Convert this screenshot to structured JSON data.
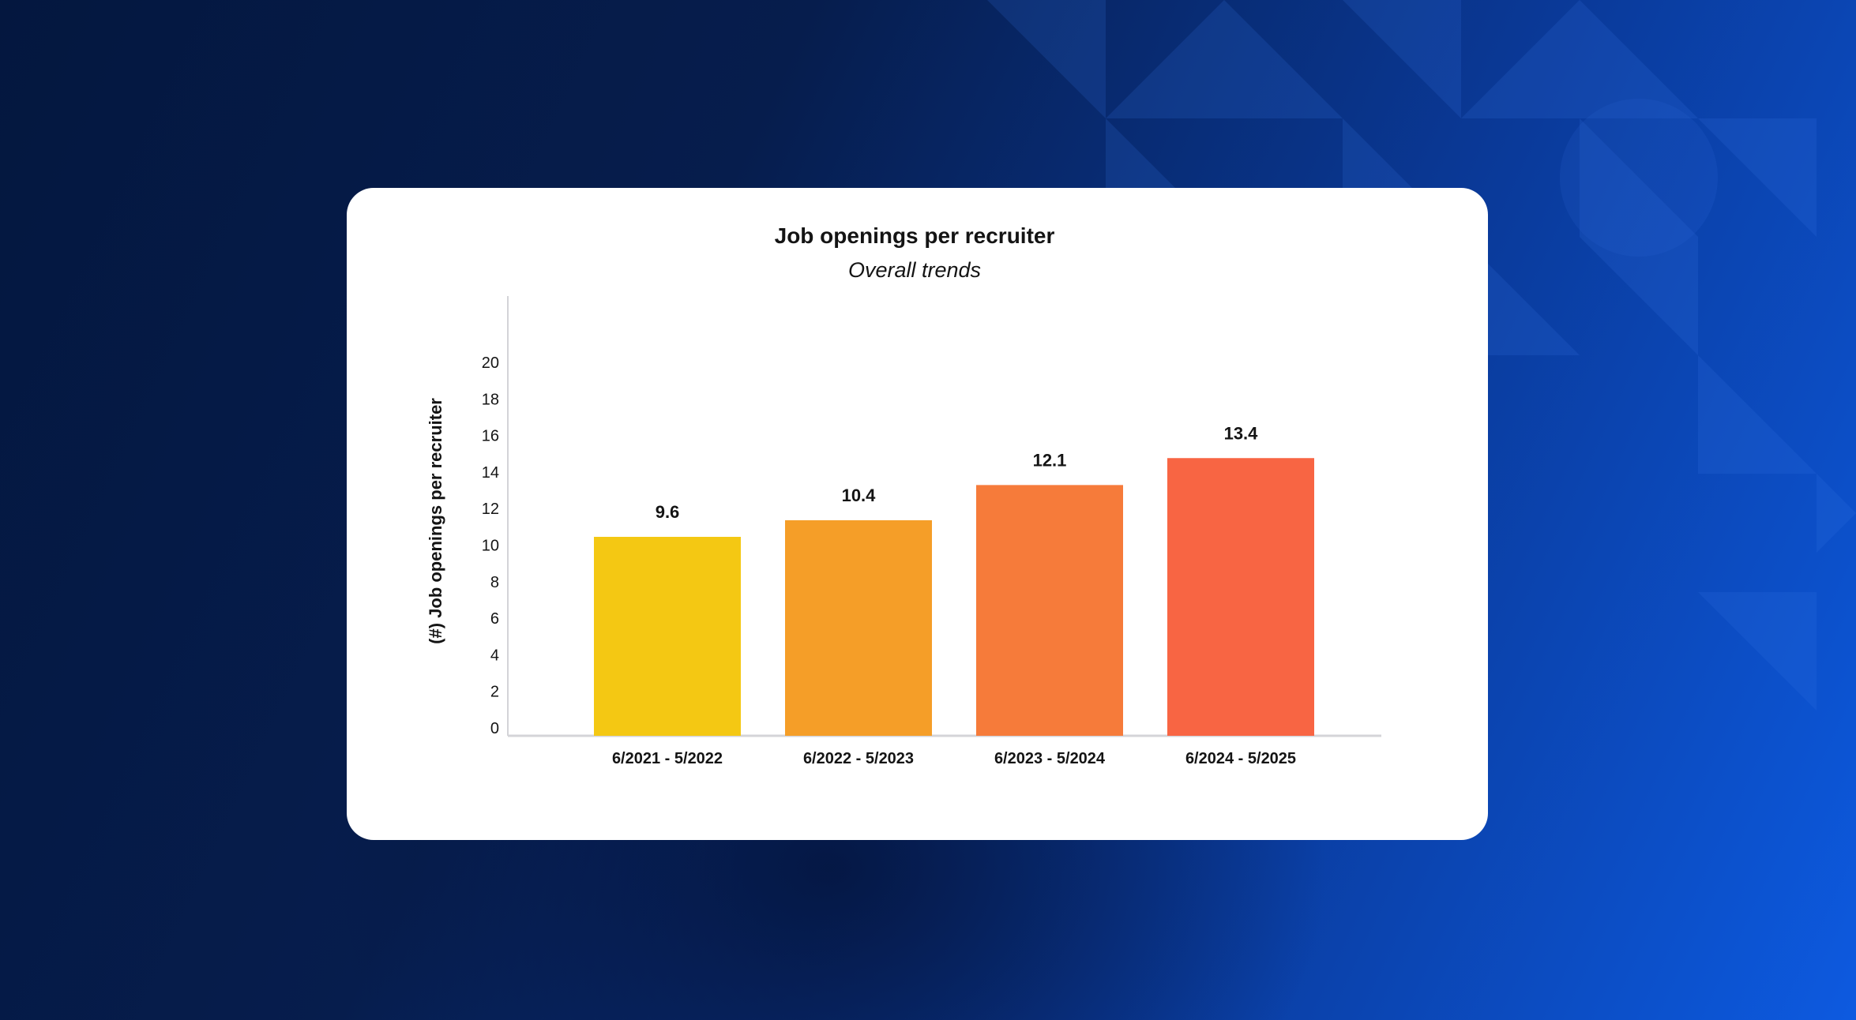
{
  "chart_data": {
    "type": "bar",
    "title": "Job openings per recruiter",
    "subtitle": "Overall trends",
    "xlabel": "",
    "ylabel": "(#) Job openings per recruiter",
    "categories": [
      "6/2021 - 5/2022",
      "6/2022 - 5/2023",
      "6/2023 - 5/2024",
      "6/2024 - 5/2025"
    ],
    "values": [
      9.6,
      10.4,
      12.1,
      13.4
    ],
    "value_labels": [
      "9.6",
      "10.4",
      "12.1",
      "13.4"
    ],
    "y_ticks": [
      0,
      2,
      4,
      6,
      8,
      10,
      12,
      14,
      16,
      18,
      20
    ],
    "ylim": [
      0,
      20
    ],
    "grid": false,
    "colors": [
      "#f4c813",
      "#f59e28",
      "#f67b3a",
      "#f86543"
    ]
  },
  "background": {
    "colors": [
      "#04173f",
      "#0d5ae0"
    ]
  }
}
